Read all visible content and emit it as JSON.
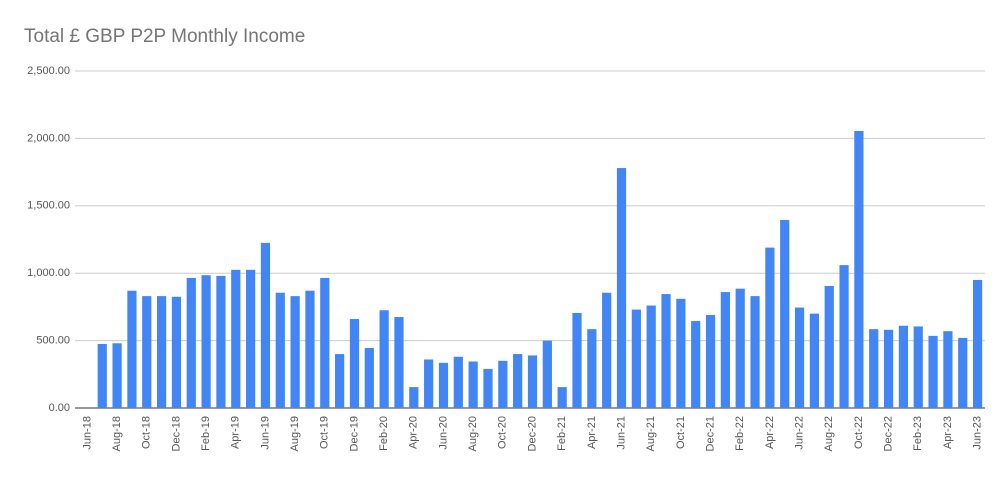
{
  "chart_data": {
    "type": "bar",
    "title": "Total £ GBP P2P Monthly Income",
    "categories": [
      "Jun-18",
      null,
      "Aug-18",
      null,
      "Oct-18",
      null,
      "Dec-18",
      null,
      "Feb-19",
      null,
      "Apr-19",
      null,
      "Jun-19",
      null,
      "Aug-19",
      null,
      "Oct-19",
      null,
      "Dec-19",
      null,
      "Feb-20",
      null,
      "Apr-20",
      null,
      "Jun-20",
      null,
      "Aug-20",
      null,
      "Oct-20",
      null,
      "Dec-20",
      null,
      "Feb-21",
      null,
      "Apr-21",
      null,
      "Jun-21",
      null,
      "Aug-21",
      null,
      "Oct-21",
      null,
      "Dec-21",
      null,
      "Feb-22",
      null,
      "Apr-22",
      null,
      "Jun-22",
      null,
      "Aug-22",
      null,
      "Oct-22",
      null,
      "Dec-22",
      null,
      "Feb-23",
      null,
      "Apr-23",
      null,
      "Jun-23"
    ],
    "values": [
      null,
      475,
      480,
      870,
      830,
      830,
      825,
      965,
      985,
      980,
      1025,
      1025,
      1225,
      855,
      830,
      870,
      965,
      400,
      660,
      445,
      725,
      675,
      155,
      360,
      335,
      380,
      345,
      290,
      350,
      400,
      390,
      500,
      155,
      705,
      585,
      855,
      1780,
      730,
      760,
      845,
      810,
      645,
      690,
      860,
      885,
      830,
      1190,
      1395,
      745,
      700,
      905,
      1060,
      2055,
      585,
      580,
      610,
      605,
      535,
      570,
      520,
      950
    ],
    "color": "#4285f4",
    "ylim": [
      0,
      2500
    ],
    "yticks": [
      {
        "value": 0,
        "label": "0.00"
      },
      {
        "value": 500,
        "label": "500.00"
      },
      {
        "value": 1000,
        "label": "1,000.00"
      },
      {
        "value": 1500,
        "label": "1,500.00"
      },
      {
        "value": 2000,
        "label": "2,000.00"
      },
      {
        "value": 2500,
        "label": "2,500.00"
      }
    ],
    "grid": true
  }
}
